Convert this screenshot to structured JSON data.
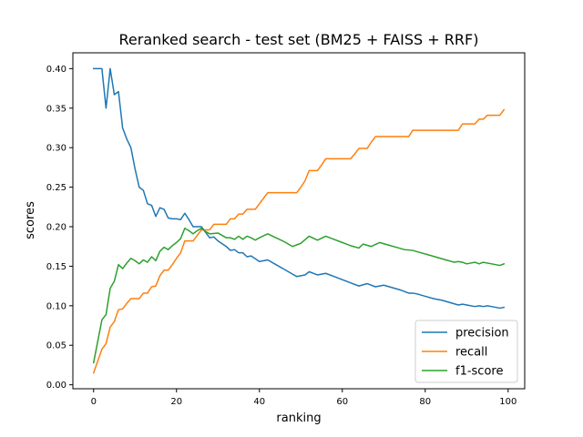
{
  "chart_data": {
    "type": "line",
    "title": "Reranked search - test set (BM25 + FAISS + RRF)",
    "xlabel": "ranking",
    "ylabel": "scores",
    "xlim": [
      -5,
      104
    ],
    "ylim": [
      -0.005,
      0.42
    ],
    "xticks": [
      0,
      20,
      40,
      60,
      80,
      100
    ],
    "xtick_labels": [
      "0",
      "20",
      "40",
      "60",
      "80",
      "100"
    ],
    "yticks": [
      0.0,
      0.05,
      0.1,
      0.15,
      0.2,
      0.25,
      0.3,
      0.35,
      0.4
    ],
    "ytick_labels": [
      "0.00",
      "0.05",
      "0.10",
      "0.15",
      "0.20",
      "0.25",
      "0.30",
      "0.35",
      "0.40"
    ],
    "grid": false,
    "legend_position": "lower-right",
    "series": [
      {
        "name": "precision",
        "color": "#1f77b4",
        "points": [
          [
            0,
            0.4
          ],
          [
            1,
            0.4
          ],
          [
            2,
            0.4
          ],
          [
            3,
            0.35
          ],
          [
            4,
            0.4
          ],
          [
            5,
            0.367
          ],
          [
            6,
            0.371
          ],
          [
            7,
            0.325
          ],
          [
            8,
            0.311
          ],
          [
            9,
            0.3
          ],
          [
            10,
            0.273
          ],
          [
            11,
            0.25
          ],
          [
            12,
            0.246
          ],
          [
            13,
            0.229
          ],
          [
            14,
            0.227
          ],
          [
            15,
            0.213
          ],
          [
            16,
            0.224
          ],
          [
            17,
            0.222
          ],
          [
            18,
            0.211
          ],
          [
            19,
            0.21
          ],
          [
            20,
            0.21
          ],
          [
            21,
            0.209
          ],
          [
            22,
            0.217
          ],
          [
            23,
            0.209
          ],
          [
            24,
            0.2
          ],
          [
            25,
            0.2
          ],
          [
            26,
            0.2
          ],
          [
            27,
            0.193
          ],
          [
            28,
            0.186
          ],
          [
            29,
            0.187
          ],
          [
            30,
            0.182
          ],
          [
            32,
            0.175
          ],
          [
            33,
            0.17
          ],
          [
            34,
            0.171
          ],
          [
            35,
            0.167
          ],
          [
            36,
            0.167
          ],
          [
            37,
            0.162
          ],
          [
            38,
            0.163
          ],
          [
            40,
            0.156
          ],
          [
            42,
            0.158
          ],
          [
            44,
            0.152
          ],
          [
            46,
            0.146
          ],
          [
            48,
            0.14
          ],
          [
            49,
            0.137
          ],
          [
            51,
            0.139
          ],
          [
            52,
            0.143
          ],
          [
            54,
            0.139
          ],
          [
            56,
            0.141
          ],
          [
            58,
            0.137
          ],
          [
            60,
            0.133
          ],
          [
            62,
            0.129
          ],
          [
            64,
            0.125
          ],
          [
            66,
            0.128
          ],
          [
            68,
            0.124
          ],
          [
            70,
            0.126
          ],
          [
            72,
            0.123
          ],
          [
            74,
            0.12
          ],
          [
            76,
            0.116
          ],
          [
            77,
            0.116
          ],
          [
            78,
            0.115
          ],
          [
            80,
            0.112
          ],
          [
            82,
            0.109
          ],
          [
            84,
            0.107
          ],
          [
            86,
            0.104
          ],
          [
            88,
            0.101
          ],
          [
            89,
            0.102
          ],
          [
            90,
            0.101
          ],
          [
            92,
            0.099
          ],
          [
            93,
            0.1
          ],
          [
            94,
            0.099
          ],
          [
            95,
            0.1
          ],
          [
            96,
            0.099
          ],
          [
            97,
            0.098
          ],
          [
            98,
            0.097
          ],
          [
            99,
            0.098
          ]
        ]
      },
      {
        "name": "recall",
        "color": "#ff7f0e",
        "points": [
          [
            0,
            0.015
          ],
          [
            1,
            0.03
          ],
          [
            2,
            0.045
          ],
          [
            3,
            0.052
          ],
          [
            4,
            0.073
          ],
          [
            5,
            0.08
          ],
          [
            6,
            0.095
          ],
          [
            7,
            0.096
          ],
          [
            8,
            0.103
          ],
          [
            9,
            0.109
          ],
          [
            11,
            0.109
          ],
          [
            12,
            0.116
          ],
          [
            13,
            0.116
          ],
          [
            14,
            0.124
          ],
          [
            15,
            0.125
          ],
          [
            16,
            0.138
          ],
          [
            17,
            0.145
          ],
          [
            18,
            0.145
          ],
          [
            19,
            0.152
          ],
          [
            20,
            0.16
          ],
          [
            21,
            0.167
          ],
          [
            22,
            0.182
          ],
          [
            24,
            0.182
          ],
          [
            25,
            0.189
          ],
          [
            26,
            0.196
          ],
          [
            27,
            0.196
          ],
          [
            28,
            0.196
          ],
          [
            29,
            0.203
          ],
          [
            32,
            0.203
          ],
          [
            33,
            0.21
          ],
          [
            34,
            0.21
          ],
          [
            35,
            0.216
          ],
          [
            36,
            0.216
          ],
          [
            37,
            0.222
          ],
          [
            39,
            0.222
          ],
          [
            40,
            0.229
          ],
          [
            41,
            0.236
          ],
          [
            42,
            0.243
          ],
          [
            49,
            0.243
          ],
          [
            50,
            0.25
          ],
          [
            51,
            0.258
          ],
          [
            52,
            0.271
          ],
          [
            54,
            0.271
          ],
          [
            55,
            0.278
          ],
          [
            56,
            0.286
          ],
          [
            62,
            0.286
          ],
          [
            63,
            0.292
          ],
          [
            64,
            0.299
          ],
          [
            66,
            0.299
          ],
          [
            67,
            0.307
          ],
          [
            68,
            0.314
          ],
          [
            75,
            0.314
          ],
          [
            76,
            0.314
          ],
          [
            77,
            0.322
          ],
          [
            88,
            0.322
          ],
          [
            89,
            0.33
          ],
          [
            92,
            0.33
          ],
          [
            93,
            0.336
          ],
          [
            94,
            0.336
          ],
          [
            95,
            0.341
          ],
          [
            98,
            0.341
          ],
          [
            99,
            0.348
          ]
        ]
      },
      {
        "name": "f1-score",
        "color": "#2ca02c",
        "points": [
          [
            0,
            0.028
          ],
          [
            1,
            0.055
          ],
          [
            2,
            0.082
          ],
          [
            3,
            0.089
          ],
          [
            4,
            0.122
          ],
          [
            5,
            0.131
          ],
          [
            6,
            0.152
          ],
          [
            7,
            0.147
          ],
          [
            8,
            0.154
          ],
          [
            9,
            0.16
          ],
          [
            10,
            0.157
          ],
          [
            11,
            0.153
          ],
          [
            12,
            0.158
          ],
          [
            13,
            0.155
          ],
          [
            14,
            0.162
          ],
          [
            15,
            0.157
          ],
          [
            16,
            0.169
          ],
          [
            17,
            0.174
          ],
          [
            18,
            0.171
          ],
          [
            19,
            0.176
          ],
          [
            20,
            0.18
          ],
          [
            21,
            0.185
          ],
          [
            22,
            0.198
          ],
          [
            23,
            0.195
          ],
          [
            24,
            0.191
          ],
          [
            25,
            0.195
          ],
          [
            26,
            0.198
          ],
          [
            27,
            0.194
          ],
          [
            28,
            0.191
          ],
          [
            30,
            0.192
          ],
          [
            32,
            0.186
          ],
          [
            33,
            0.186
          ],
          [
            34,
            0.184
          ],
          [
            35,
            0.188
          ],
          [
            36,
            0.184
          ],
          [
            37,
            0.188
          ],
          [
            38,
            0.186
          ],
          [
            39,
            0.183
          ],
          [
            40,
            0.186
          ],
          [
            42,
            0.191
          ],
          [
            44,
            0.186
          ],
          [
            46,
            0.181
          ],
          [
            48,
            0.175
          ],
          [
            50,
            0.179
          ],
          [
            52,
            0.188
          ],
          [
            54,
            0.183
          ],
          [
            56,
            0.188
          ],
          [
            58,
            0.184
          ],
          [
            60,
            0.18
          ],
          [
            62,
            0.176
          ],
          [
            64,
            0.173
          ],
          [
            65,
            0.178
          ],
          [
            67,
            0.175
          ],
          [
            69,
            0.18
          ],
          [
            71,
            0.177
          ],
          [
            73,
            0.174
          ],
          [
            75,
            0.171
          ],
          [
            77,
            0.17
          ],
          [
            79,
            0.167
          ],
          [
            81,
            0.164
          ],
          [
            83,
            0.161
          ],
          [
            85,
            0.158
          ],
          [
            87,
            0.155
          ],
          [
            88,
            0.156
          ],
          [
            89,
            0.155
          ],
          [
            90,
            0.153
          ],
          [
            91,
            0.154
          ],
          [
            92,
            0.155
          ],
          [
            93,
            0.153
          ],
          [
            94,
            0.155
          ],
          [
            96,
            0.153
          ],
          [
            98,
            0.151
          ],
          [
            99,
            0.153
          ]
        ]
      }
    ]
  }
}
